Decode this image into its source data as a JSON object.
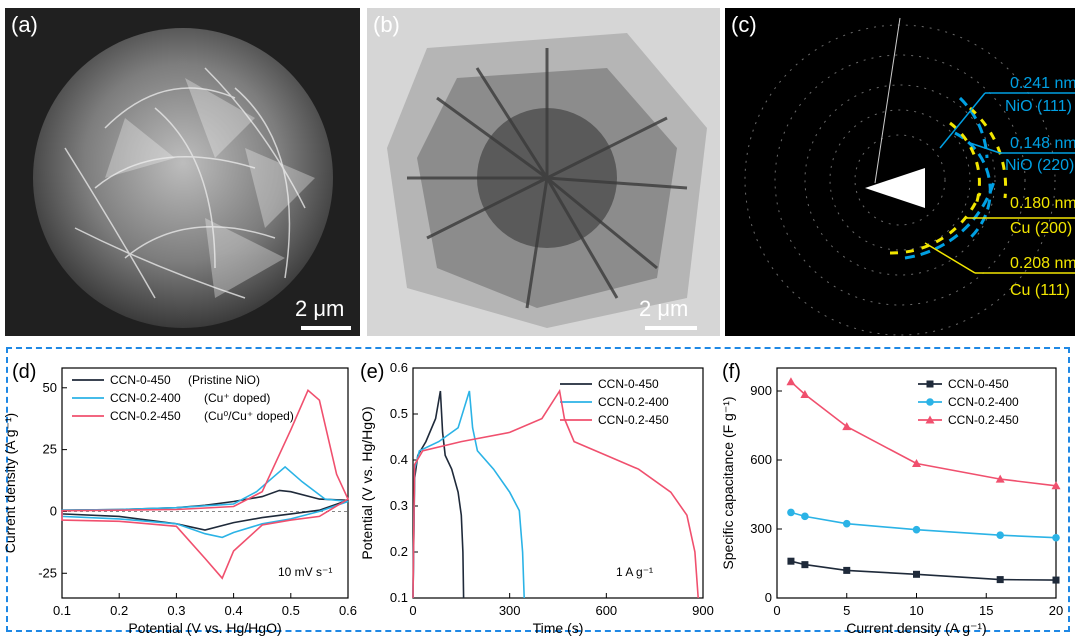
{
  "panels": {
    "a": {
      "label": "(a)",
      "scale": "2 μm"
    },
    "b": {
      "label": "(b)",
      "scale": "2 μm"
    },
    "c": {
      "label": "(c)",
      "annotations": [
        {
          "d": "0.241 nm",
          "plane": "NiO (111)",
          "color": "#00a0e3"
        },
        {
          "d": "0.148 nm",
          "plane": "NiO (220)",
          "color": "#00a0e3"
        },
        {
          "d": "0.180 nm",
          "plane": "Cu (200)",
          "color": "#f2e600"
        },
        {
          "d": "0.208 nm",
          "plane": "Cu (111)",
          "color": "#f2e600"
        }
      ]
    }
  },
  "colors": {
    "black": "#1f2a3a",
    "blue": "#2bb3e6",
    "red": "#f0506e",
    "frame": "#1e88e5"
  },
  "chart_data": [
    {
      "panel": "(d)",
      "type": "line",
      "xlabel": "Potential (V vs. Hg/HgO)",
      "ylabel": "Current density (A g⁻¹)",
      "xlim": [
        0.1,
        0.6
      ],
      "ylim": [
        -35,
        58
      ],
      "xticks": [
        0.1,
        0.2,
        0.3,
        0.4,
        0.5,
        0.6
      ],
      "yticks": [
        -25,
        0,
        25,
        50
      ],
      "annotation": "10 mV s⁻¹",
      "series": [
        {
          "name": "CCN-0-450",
          "note": "(Pristine NiO)",
          "color": "#1f2a3a",
          "x": [
            0.1,
            0.2,
            0.3,
            0.35,
            0.4,
            0.45,
            0.48,
            0.5,
            0.55,
            0.6,
            0.55,
            0.5,
            0.45,
            0.4,
            0.35,
            0.3,
            0.2,
            0.1
          ],
          "y": [
            0.5,
            0.8,
            1.5,
            2.5,
            4,
            6,
            8.5,
            8,
            5,
            4.5,
            0.5,
            -1,
            -2.5,
            -4.5,
            -7.5,
            -5,
            -2,
            -1
          ]
        },
        {
          "name": "CCN-0.2-400",
          "note": "(Cu⁺ doped)",
          "color": "#2bb3e6",
          "x": [
            0.1,
            0.2,
            0.3,
            0.4,
            0.44,
            0.47,
            0.49,
            0.52,
            0.56,
            0.6,
            0.55,
            0.5,
            0.45,
            0.4,
            0.38,
            0.35,
            0.3,
            0.2,
            0.1
          ],
          "y": [
            0.5,
            0.8,
            1.5,
            3,
            8,
            14,
            18,
            12,
            5,
            4,
            0,
            -3,
            -5,
            -8.5,
            -10.5,
            -9,
            -5,
            -3,
            -2
          ]
        },
        {
          "name": "CCN-0.2-450",
          "note": "(Cu⁰/Cu⁺ doped)",
          "color": "#f0506e",
          "x": [
            0.1,
            0.2,
            0.3,
            0.4,
            0.45,
            0.5,
            0.53,
            0.55,
            0.58,
            0.6,
            0.55,
            0.5,
            0.45,
            0.4,
            0.38,
            0.35,
            0.3,
            0.2,
            0.1
          ],
          "y": [
            0.3,
            0.5,
            0.8,
            2,
            8,
            33,
            49,
            45,
            15,
            5,
            -2,
            -3.5,
            -5.5,
            -16,
            -27,
            -19,
            -6,
            -4,
            -3.5
          ]
        }
      ]
    },
    {
      "panel": "(e)",
      "type": "line",
      "xlabel": "Time (s)",
      "ylabel": "Potential (V vs. Hg/HgO)",
      "xlim": [
        0,
        900
      ],
      "ylim": [
        0.1,
        0.6
      ],
      "xticks": [
        0,
        300,
        600,
        900
      ],
      "yticks": [
        0.1,
        0.2,
        0.3,
        0.4,
        0.5,
        0.6
      ],
      "annotation": "1 A g⁻¹",
      "series": [
        {
          "name": "CCN-0-450",
          "color": "#1f2a3a",
          "x": [
            0,
            5,
            15,
            40,
            70,
            85,
            92,
            100,
            120,
            140,
            150,
            155,
            157
          ],
          "y": [
            0.1,
            0.36,
            0.41,
            0.44,
            0.49,
            0.55,
            0.46,
            0.41,
            0.38,
            0.33,
            0.28,
            0.2,
            0.1
          ]
        },
        {
          "name": "CCN-0.2-400",
          "color": "#2bb3e6",
          "x": [
            0,
            5,
            20,
            80,
            140,
            175,
            185,
            200,
            250,
            300,
            330,
            340,
            345
          ],
          "y": [
            0.1,
            0.38,
            0.42,
            0.44,
            0.47,
            0.55,
            0.47,
            0.42,
            0.38,
            0.33,
            0.29,
            0.2,
            0.1
          ]
        },
        {
          "name": "CCN-0.2-450",
          "color": "#f0506e",
          "x": [
            0,
            5,
            30,
            150,
            300,
            400,
            455,
            470,
            500,
            600,
            700,
            800,
            850,
            875,
            885
          ],
          "y": [
            0.1,
            0.39,
            0.42,
            0.44,
            0.46,
            0.49,
            0.55,
            0.49,
            0.44,
            0.41,
            0.38,
            0.33,
            0.28,
            0.2,
            0.1
          ]
        }
      ]
    },
    {
      "panel": "(f)",
      "type": "line",
      "xlabel": "Current density (A g⁻¹)",
      "ylabel": "Specific capacitance (F g⁻¹)",
      "xlim": [
        0,
        20
      ],
      "ylim": [
        0,
        1000
      ],
      "xticks": [
        0,
        5,
        10,
        15,
        20
      ],
      "yticks": [
        0,
        300,
        600,
        900
      ],
      "x": [
        1,
        2,
        5,
        10,
        16,
        20
      ],
      "series": [
        {
          "name": "CCN-0-450",
          "color": "#1f2a3a",
          "marker": "square",
          "values": [
            160,
            145,
            120,
            103,
            80,
            78
          ]
        },
        {
          "name": "CCN-0.2-400",
          "color": "#2bb3e6",
          "marker": "circle",
          "values": [
            372,
            355,
            323,
            297,
            273,
            262
          ]
        },
        {
          "name": "CCN-0.2-450",
          "color": "#f0506e",
          "marker": "triangle",
          "values": [
            940,
            885,
            745,
            585,
            517,
            488
          ]
        }
      ]
    }
  ]
}
